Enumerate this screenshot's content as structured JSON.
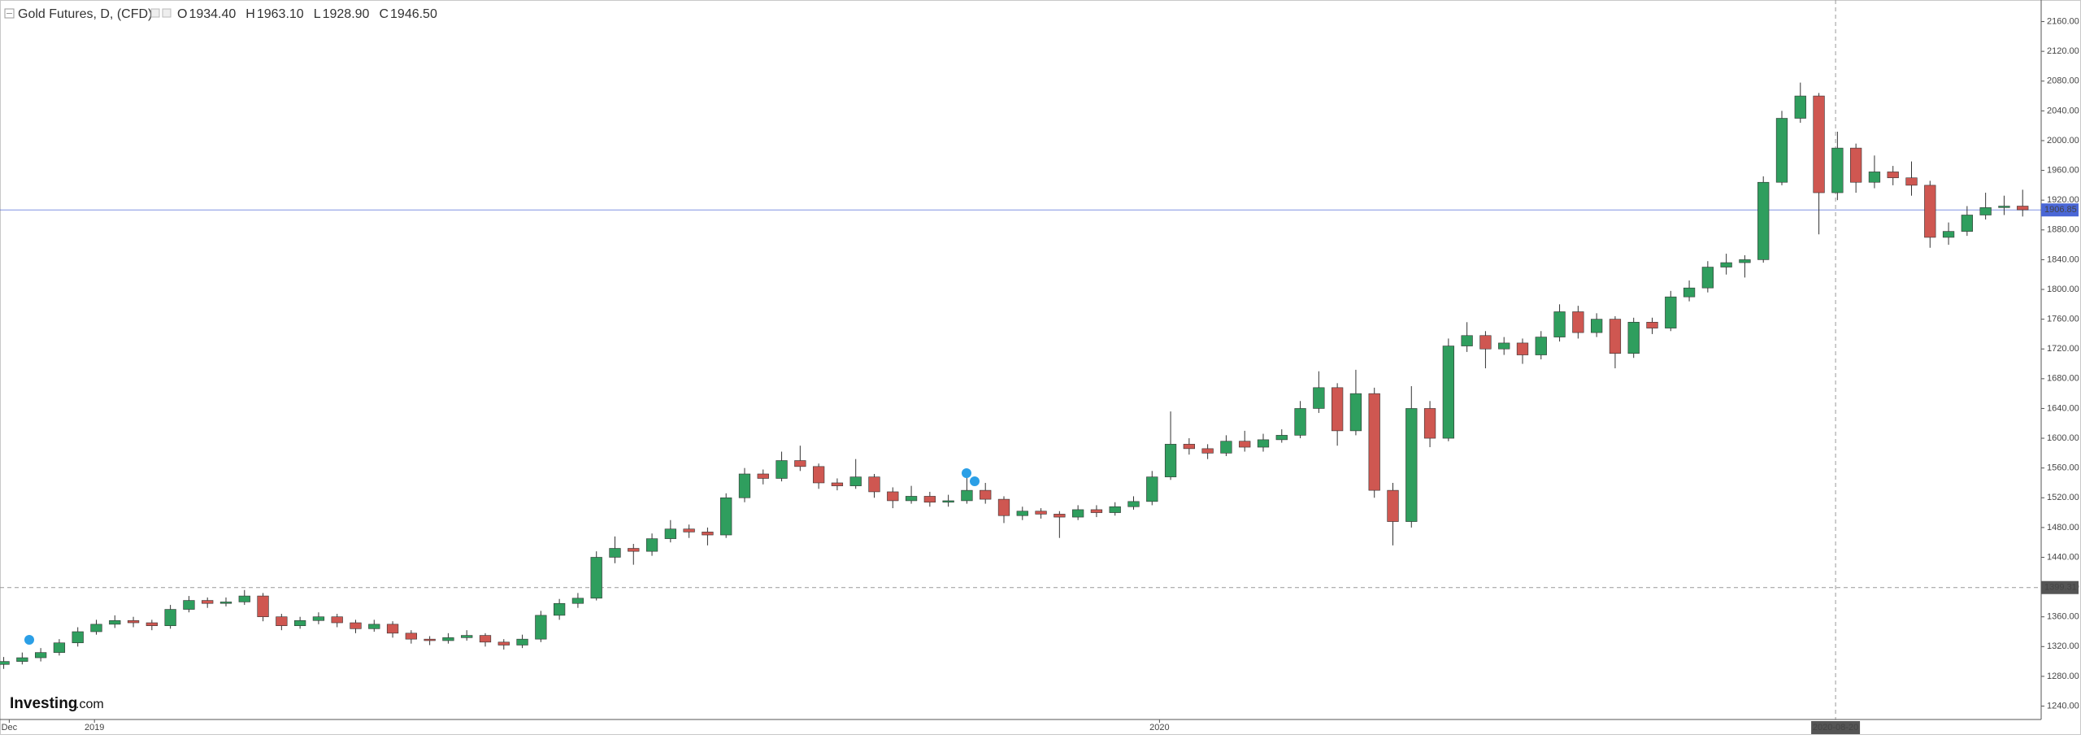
{
  "chart_data": {
    "type": "candlestick",
    "title": "Gold Futures, D, (CFD)",
    "ohlc_readout": [
      {
        "key": "O",
        "text": "1934.40"
      },
      {
        "key": "H",
        "text": "1963.10"
      },
      {
        "key": "L",
        "text": "1928.90"
      },
      {
        "key": "C",
        "text": "1946.50"
      }
    ],
    "brand": {
      "name": "Investing",
      "suffix": ".com"
    },
    "up_color": "#2f9e5e",
    "down_color": "#cf5751",
    "open": [
      1296,
      1300,
      1305,
      1312,
      1325,
      1340,
      1350,
      1355,
      1352,
      1348,
      1370,
      1382,
      1378,
      1380,
      1388,
      1360,
      1348,
      1355,
      1360,
      1352,
      1344,
      1350,
      1338,
      1330,
      1328,
      1332,
      1335,
      1326,
      1322,
      1330,
      1362,
      1378,
      1385,
      1440,
      1452,
      1448,
      1465,
      1478,
      1474,
      1470,
      1520,
      1552,
      1546,
      1570,
      1562,
      1540,
      1536,
      1548,
      1528,
      1516,
      1522,
      1514,
      1516,
      1530,
      1518,
      1496,
      1502,
      1498,
      1494,
      1504,
      1500,
      1508,
      1515,
      1548,
      1592,
      1586,
      1580,
      1596,
      1588,
      1598,
      1604,
      1640,
      1668,
      1610,
      1660,
      1530,
      1488,
      1640,
      1600,
      1724,
      1738,
      1720,
      1728,
      1712,
      1736,
      1770,
      1742,
      1760,
      1714,
      1756,
      1748,
      1790,
      1802,
      1830,
      1836,
      1840,
      1944,
      2030,
      2060,
      1930,
      1990,
      1944,
      1958,
      1950,
      1940,
      1870,
      1878,
      1900,
      1910,
      1912
    ],
    "high": [
      1306,
      1312,
      1318,
      1330,
      1346,
      1356,
      1362,
      1360,
      1356,
      1376,
      1388,
      1386,
      1386,
      1396,
      1392,
      1364,
      1360,
      1366,
      1364,
      1356,
      1356,
      1354,
      1342,
      1334,
      1338,
      1342,
      1338,
      1330,
      1336,
      1368,
      1384,
      1392,
      1448,
      1468,
      1458,
      1472,
      1490,
      1484,
      1480,
      1526,
      1560,
      1558,
      1582,
      1590,
      1566,
      1546,
      1572,
      1552,
      1534,
      1536,
      1528,
      1524,
      1550,
      1540,
      1522,
      1508,
      1506,
      1502,
      1510,
      1510,
      1514,
      1522,
      1556,
      1636,
      1600,
      1592,
      1604,
      1610,
      1606,
      1612,
      1650,
      1690,
      1674,
      1692,
      1668,
      1540,
      1670,
      1650,
      1734,
      1756,
      1744,
      1736,
      1734,
      1744,
      1780,
      1778,
      1768,
      1764,
      1762,
      1762,
      1798,
      1812,
      1838,
      1848,
      1846,
      1952,
      2040,
      2078,
      2064,
      2012,
      1996,
      1980,
      1966,
      1972,
      1946,
      1890,
      1912,
      1930,
      1926,
      1934
    ],
    "low": [
      1290,
      1296,
      1300,
      1308,
      1320,
      1336,
      1345,
      1346,
      1342,
      1344,
      1366,
      1372,
      1374,
      1376,
      1354,
      1342,
      1344,
      1350,
      1346,
      1338,
      1340,
      1332,
      1324,
      1322,
      1324,
      1328,
      1320,
      1316,
      1318,
      1326,
      1356,
      1372,
      1382,
      1432,
      1430,
      1442,
      1460,
      1466,
      1456,
      1466,
      1514,
      1538,
      1542,
      1556,
      1532,
      1530,
      1532,
      1520,
      1506,
      1512,
      1508,
      1508,
      1512,
      1512,
      1486,
      1490,
      1492,
      1466,
      1490,
      1494,
      1496,
      1504,
      1510,
      1544,
      1578,
      1572,
      1576,
      1582,
      1582,
      1594,
      1600,
      1634,
      1590,
      1604,
      1520,
      1456,
      1480,
      1588,
      1596,
      1716,
      1694,
      1712,
      1700,
      1706,
      1730,
      1734,
      1736,
      1694,
      1708,
      1740,
      1744,
      1784,
      1796,
      1820,
      1816,
      1836,
      1940,
      2024,
      1874,
      1920,
      1930,
      1936,
      1940,
      1926,
      1856,
      1860,
      1872,
      1894,
      1900,
      1898
    ],
    "close": [
      1300,
      1305,
      1312,
      1325,
      1340,
      1350,
      1355,
      1352,
      1348,
      1370,
      1382,
      1378,
      1380,
      1388,
      1360,
      1348,
      1355,
      1360,
      1352,
      1344,
      1350,
      1338,
      1330,
      1328,
      1332,
      1335,
      1326,
      1322,
      1330,
      1362,
      1378,
      1385,
      1440,
      1452,
      1448,
      1465,
      1478,
      1474,
      1470,
      1520,
      1552,
      1546,
      1570,
      1562,
      1540,
      1536,
      1548,
      1528,
      1516,
      1522,
      1514,
      1516,
      1530,
      1518,
      1496,
      1502,
      1498,
      1494,
      1504,
      1500,
      1508,
      1515,
      1548,
      1592,
      1586,
      1580,
      1596,
      1588,
      1598,
      1604,
      1640,
      1668,
      1610,
      1660,
      1530,
      1488,
      1640,
      1600,
      1724,
      1738,
      1720,
      1728,
      1712,
      1736,
      1770,
      1742,
      1760,
      1714,
      1756,
      1748,
      1790,
      1802,
      1830,
      1836,
      1840,
      1944,
      2030,
      2060,
      1930,
      1990,
      1944,
      1958,
      1950,
      1940,
      1870,
      1878,
      1900,
      1910,
      1912,
      1907
    ],
    "xlim": [
      -0.2,
      110
    ],
    "xticks": [
      {
        "value": 0.3,
        "label": "Dec"
      },
      {
        "value": 4.9,
        "label": "2019"
      },
      {
        "value": 62.4,
        "label": "2020"
      }
    ],
    "ylim": [
      1222,
      2189
    ],
    "yticks": [
      {
        "value": 1240,
        "label": "1240.00"
      },
      {
        "value": 1280,
        "label": "1280.00"
      },
      {
        "value": 1320,
        "label": "1320.00"
      },
      {
        "value": 1360,
        "label": "1360.00"
      },
      {
        "value": 1400,
        "label": "1400.00"
      },
      {
        "value": 1440,
        "label": "1440.00"
      },
      {
        "value": 1480,
        "label": "1480.00"
      },
      {
        "value": 1520,
        "label": "1520.00"
      },
      {
        "value": 1560,
        "label": "1560.00"
      },
      {
        "value": 1600,
        "label": "1600.00"
      },
      {
        "value": 1640,
        "label": "1640.00"
      },
      {
        "value": 1680,
        "label": "1680.00"
      },
      {
        "value": 1720,
        "label": "1720.00"
      },
      {
        "value": 1760,
        "label": "1760.00"
      },
      {
        "value": 1800,
        "label": "1800.00"
      },
      {
        "value": 1840,
        "label": "1840.00"
      },
      {
        "value": 1880,
        "label": "1880.00"
      },
      {
        "value": 1920,
        "label": "1920.00"
      },
      {
        "value": 1960,
        "label": "1960.00"
      },
      {
        "value": 2000,
        "label": "2000.00"
      },
      {
        "value": 2040,
        "label": "2040.00"
      },
      {
        "value": 2080,
        "label": "2080.00"
      },
      {
        "value": 2120,
        "label": "2120.00"
      },
      {
        "value": 2160,
        "label": "2160.00"
      }
    ],
    "last_price": {
      "value": 1906.85,
      "color": "#4a67d6"
    },
    "crosshair": {
      "x": 98.9,
      "x_label": "2020-08-20",
      "y": 1399.31
    }
  }
}
